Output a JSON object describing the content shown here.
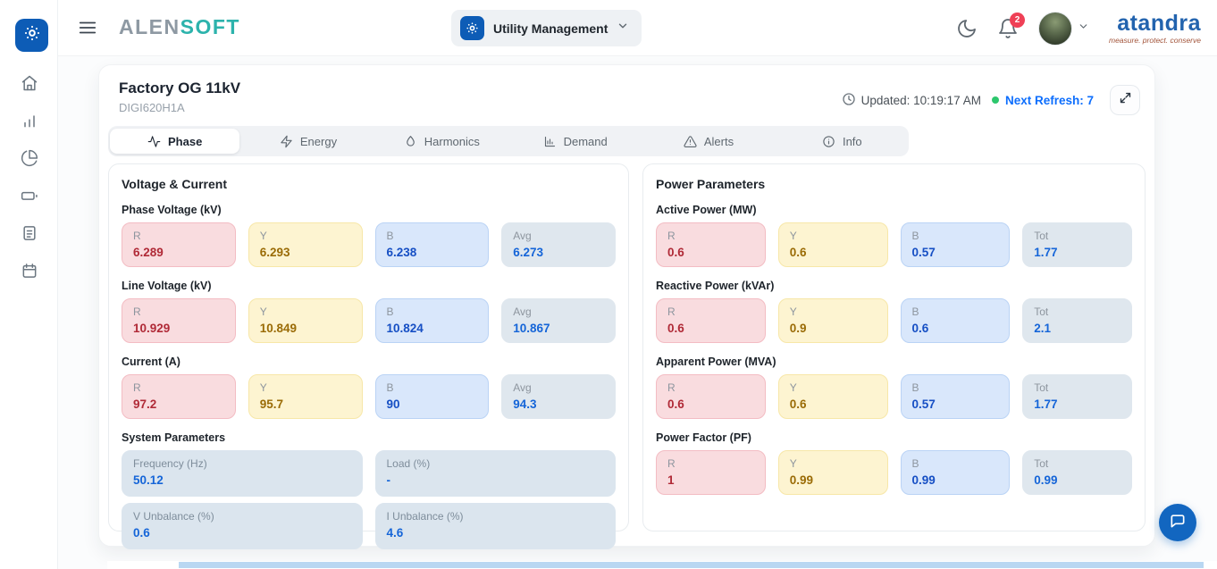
{
  "app": {
    "logo_primary": "ALEN",
    "logo_secondary": "SOFT",
    "module_selector_label": "Utility Management",
    "notification_count": "2",
    "brand_name": "atandra",
    "brand_tagline": "measure. protect. conserve"
  },
  "colors": {
    "accent_blue": "#0d5cb6",
    "phase_r": "#b02a37",
    "phase_y": "#9a6b06",
    "phase_b": "#164fc4",
    "total_blue": "#1565d8",
    "badge_red": "#ef4056",
    "status_green": "#2dc76d"
  },
  "sidebar": {
    "items": [
      {
        "icon": "home-icon"
      },
      {
        "icon": "bar-chart-icon"
      },
      {
        "icon": "pie-chart-icon"
      },
      {
        "icon": "battery-icon"
      },
      {
        "icon": "document-icon"
      },
      {
        "icon": "calendar-icon"
      }
    ]
  },
  "header": {
    "title": "Factory OG 11kV",
    "device_id": "DIGI620H1A",
    "updated_label": "Updated: 10:19:17 AM",
    "refresh_label": "Next Refresh: 7"
  },
  "tabs": [
    {
      "label": "Phase",
      "icon": "waveform-icon",
      "active": true
    },
    {
      "label": "Energy",
      "icon": "bolt-icon",
      "active": false
    },
    {
      "label": "Harmonics",
      "icon": "droplet-icon",
      "active": false
    },
    {
      "label": "Demand",
      "icon": "chart-icon",
      "active": false
    },
    {
      "label": "Alerts",
      "icon": "warning-icon",
      "active": false
    },
    {
      "label": "Info",
      "icon": "info-icon",
      "active": false
    }
  ],
  "voltage_current": {
    "title": "Voltage & Current",
    "groups": [
      {
        "label": "Phase Voltage (kV)",
        "tiles": [
          {
            "phase": "R",
            "value": "6.289"
          },
          {
            "phase": "Y",
            "value": "6.293"
          },
          {
            "phase": "B",
            "value": "6.238"
          },
          {
            "phase": "Avg",
            "value": "6.273"
          }
        ]
      },
      {
        "label": "Line Voltage (kV)",
        "tiles": [
          {
            "phase": "R",
            "value": "10.929"
          },
          {
            "phase": "Y",
            "value": "10.849"
          },
          {
            "phase": "B",
            "value": "10.824"
          },
          {
            "phase": "Avg",
            "value": "10.867"
          }
        ]
      },
      {
        "label": "Current (A)",
        "tiles": [
          {
            "phase": "R",
            "value": "97.2"
          },
          {
            "phase": "Y",
            "value": "95.7"
          },
          {
            "phase": "B",
            "value": "90"
          },
          {
            "phase": "Avg",
            "value": "94.3"
          }
        ]
      }
    ],
    "system": {
      "label": "System Parameters",
      "tiles": [
        {
          "label": "Frequency (Hz)",
          "value": "50.12"
        },
        {
          "label": "Load (%)",
          "value": "-"
        },
        {
          "label": "V Unbalance (%)",
          "value": "0.6"
        },
        {
          "label": "I Unbalance (%)",
          "value": "4.6"
        }
      ]
    }
  },
  "power_parameters": {
    "title": "Power Parameters",
    "groups": [
      {
        "label": "Active Power (MW)",
        "tiles": [
          {
            "phase": "R",
            "value": "0.6"
          },
          {
            "phase": "Y",
            "value": "0.6"
          },
          {
            "phase": "B",
            "value": "0.57"
          },
          {
            "phase": "Tot",
            "value": "1.77"
          }
        ]
      },
      {
        "label": "Reactive Power (kVAr)",
        "tiles": [
          {
            "phase": "R",
            "value": "0.6"
          },
          {
            "phase": "Y",
            "value": "0.9"
          },
          {
            "phase": "B",
            "value": "0.6"
          },
          {
            "phase": "Tot",
            "value": "2.1"
          }
        ]
      },
      {
        "label": "Apparent Power (MVA)",
        "tiles": [
          {
            "phase": "R",
            "value": "0.6"
          },
          {
            "phase": "Y",
            "value": "0.6"
          },
          {
            "phase": "B",
            "value": "0.57"
          },
          {
            "phase": "Tot",
            "value": "1.77"
          }
        ]
      },
      {
        "label": "Power Factor (PF)",
        "tiles": [
          {
            "phase": "R",
            "value": "1"
          },
          {
            "phase": "Y",
            "value": "0.99"
          },
          {
            "phase": "B",
            "value": "0.99"
          },
          {
            "phase": "Tot",
            "value": "0.99"
          }
        ]
      }
    ]
  }
}
